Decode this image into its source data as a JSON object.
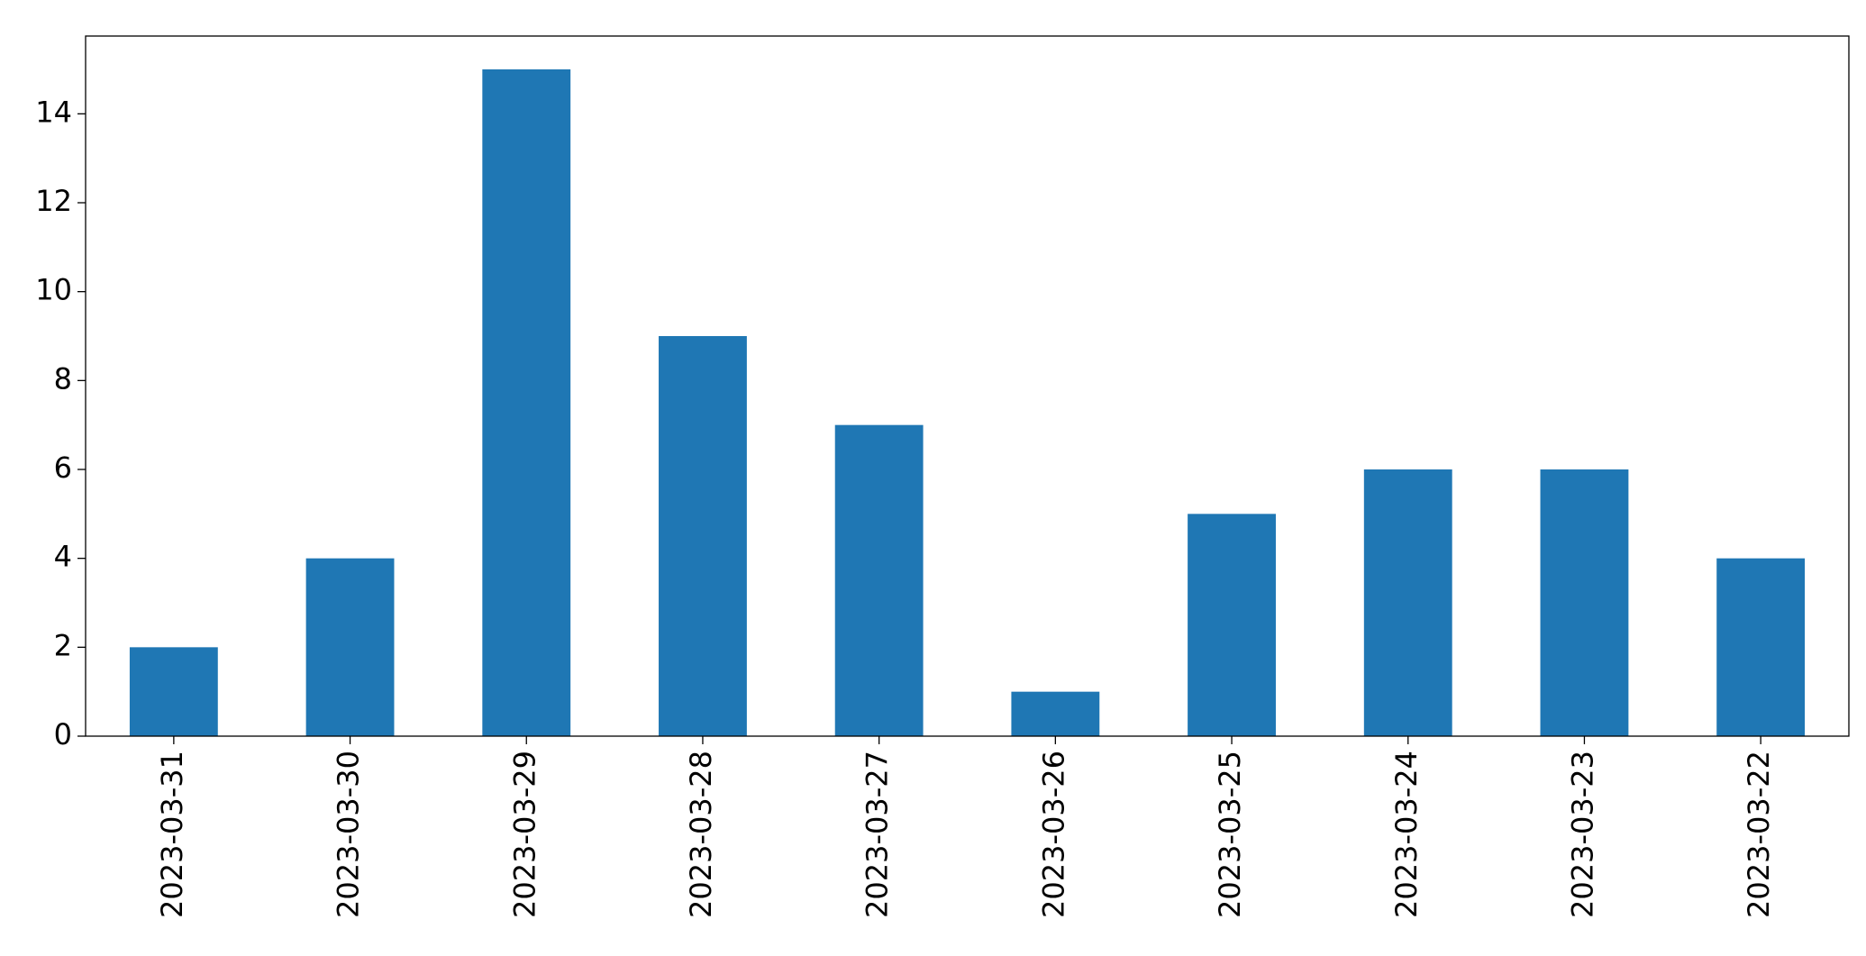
{
  "chart_data": {
    "type": "bar",
    "categories": [
      "2023-03-31",
      "2023-03-30",
      "2023-03-29",
      "2023-03-28",
      "2023-03-27",
      "2023-03-26",
      "2023-03-25",
      "2023-03-24",
      "2023-03-23",
      "2023-03-22"
    ],
    "values": [
      2,
      4,
      15,
      9,
      7,
      1,
      5,
      6,
      6,
      4
    ],
    "color": "#1f77b4",
    "ylim": [
      0,
      15.75
    ],
    "yticks": [
      0,
      2,
      4,
      6,
      8,
      10,
      12,
      14
    ],
    "grid": false
  }
}
